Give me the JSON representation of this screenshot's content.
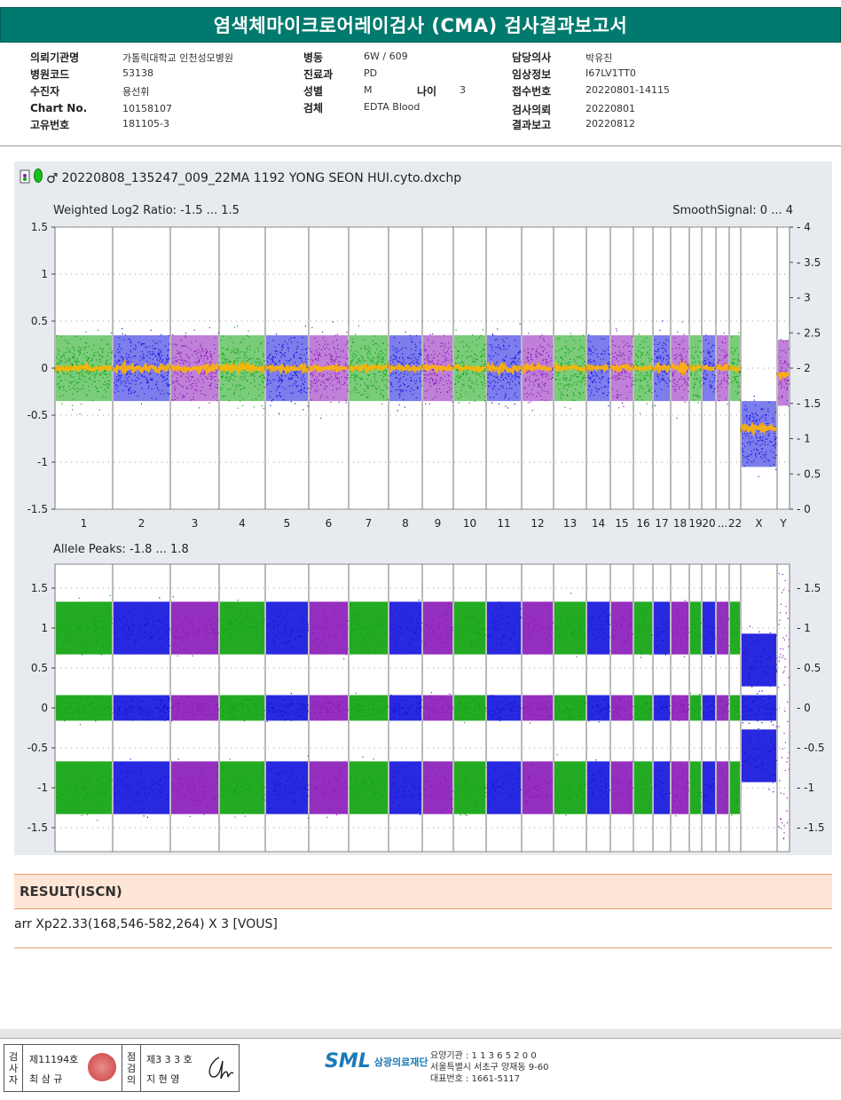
{
  "title": "염색체마이크로어레이검사 (CMA) 검사결과보고서",
  "info": {
    "col1": [
      {
        "label": "의뢰기관명",
        "value": "가톨릭대학교 인천성모병원"
      },
      {
        "label": "병원코드",
        "value": "53138"
      },
      {
        "label": "수진자",
        "value": "용선휘"
      },
      {
        "label": "Chart No.",
        "value": "10158107"
      },
      {
        "label": "고유번호",
        "value": "181105-3"
      }
    ],
    "col2": [
      {
        "label": "병동",
        "value": "6W / 609"
      },
      {
        "label": "진료과",
        "value": "PD"
      },
      {
        "label": "성별",
        "value": "M"
      },
      {
        "label": "검체",
        "value": "EDTA Blood"
      }
    ],
    "age": {
      "label": "나이",
      "value": "3"
    },
    "col3": [
      {
        "label": "담당의사",
        "value": "박유진"
      },
      {
        "label": "임상정보",
        "value": "I67LV1TT0"
      },
      {
        "label": "접수번호",
        "value": "20220801-14115"
      },
      {
        "label": "검사의뢰",
        "value": "20220801"
      },
      {
        "label": "결과보고",
        "value": "20220812"
      }
    ]
  },
  "plot": {
    "file_title": "20220808_135247_009_22MA 1192 YONG SEON HUI.cyto.dxchp",
    "icons": [
      "file-icon",
      "green-pin-icon",
      "male-symbol-icon"
    ],
    "colors": {
      "green": "#0ca20c",
      "blue": "#1212dc",
      "purple": "#8a18b8",
      "orange": "#ffb400"
    }
  },
  "chart_data": [
    {
      "type": "scatter",
      "title": "Weighted Log2 Ratio: -1.5 ... 1.5",
      "right_title": "SmoothSignal: 0 ... 4",
      "ylim": [
        -1.5,
        1.5
      ],
      "y_ticks": [
        "1.5",
        "1",
        "0.5",
        "0",
        "-0.5",
        "-1",
        "-1.5"
      ],
      "y2lim": [
        0,
        4
      ],
      "y2_ticks": [
        "4",
        "3.5",
        "3",
        "2.5",
        "2",
        "1.5",
        "1",
        "0.5",
        "0"
      ],
      "categories": [
        "1",
        "2",
        "3",
        "4",
        "5",
        "6",
        "7",
        "8",
        "9",
        "10",
        "11",
        "12",
        "13",
        "14",
        "15",
        "16",
        "17",
        "18",
        "19",
        "20",
        "21",
        "22",
        "X",
        "Y"
      ],
      "x_labels": [
        "1",
        "2",
        "3",
        "4",
        "5",
        "6",
        "7",
        "8",
        "9",
        "10",
        "11",
        "12",
        "13",
        "14",
        "15",
        "16",
        "17",
        "18",
        "19",
        "20",
        "...",
        "22",
        "X",
        "Y"
      ],
      "series": [
        {
          "values": [
            0,
            0,
            0,
            0,
            0,
            0,
            0,
            0,
            0,
            0,
            0,
            0,
            0,
            0,
            0,
            0,
            0,
            0,
            0,
            0,
            0,
            0,
            -0.7,
            -0.05
          ]
        }
      ],
      "smooth_signal": [
        2,
        2,
        2,
        2,
        2,
        2,
        2,
        2,
        2,
        2,
        2,
        2,
        2,
        2,
        2,
        2,
        2,
        2,
        2,
        2,
        2,
        2,
        1.15,
        1.9
      ],
      "grid": true
    },
    {
      "type": "scatter",
      "title": "Allele Peaks: -1.8 ... 1.8",
      "ylim": [
        -1.8,
        1.8
      ],
      "y_ticks": [
        "1.5",
        "1",
        "0.5",
        "0",
        "-0.5",
        "-1",
        "-1.5"
      ],
      "bands": [
        -1.0,
        0,
        1.0
      ],
      "grid": true
    }
  ],
  "result": {
    "heading": "RESULT(ISCN)",
    "text": "arr Xp22.33(168,546-582,264) X 3 [VOUS]"
  },
  "footer": {
    "v1": [
      "검",
      "사",
      "자"
    ],
    "doc1_no": "제11194호",
    "doc1_name": "최 삼 규",
    "v2": [
      "점",
      "검",
      "의"
    ],
    "doc2_no": "제3 3 3 호",
    "doc2_name": "지 현 영",
    "org_logo": "SML",
    "org_name": "삼광의료재단",
    "org_lines": [
      "요양기관 : 1 1 3 6 5 2 0 0",
      "서울특별시 서초구 양재동 9-60",
      "대표번호 : 1661-5117"
    ]
  }
}
